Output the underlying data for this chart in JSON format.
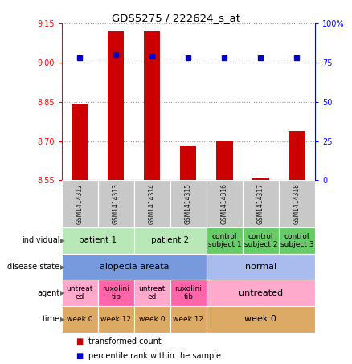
{
  "title": "GDS5275 / 222624_s_at",
  "samples": [
    "GSM1414312",
    "GSM1414313",
    "GSM1414314",
    "GSM1414315",
    "GSM1414316",
    "GSM1414317",
    "GSM1414318"
  ],
  "transformed_count": [
    8.84,
    9.12,
    9.12,
    8.68,
    8.7,
    8.56,
    8.74
  ],
  "percentile_rank": [
    78,
    80,
    79,
    78,
    78,
    78,
    78
  ],
  "ylim_left": [
    8.55,
    9.15
  ],
  "ylim_right": [
    0,
    100
  ],
  "yticks_left": [
    8.55,
    8.7,
    8.85,
    9.0,
    9.15
  ],
  "yticks_right": [
    0,
    25,
    50,
    75,
    100
  ],
  "ytick_labels_right": [
    "0",
    "25",
    "50",
    "75",
    "100%"
  ],
  "bar_color": "#cc0000",
  "dot_color": "#0000cc",
  "annotation_rows": [
    {
      "label": "individual",
      "cells": [
        {
          "text": "patient 1",
          "span": 2,
          "color": "#b8e8b8",
          "fontsize": 7.5
        },
        {
          "text": "patient 2",
          "span": 2,
          "color": "#b8e8b8",
          "fontsize": 7.5
        },
        {
          "text": "control\nsubject 1",
          "span": 1,
          "color": "#66cc66",
          "fontsize": 6.5
        },
        {
          "text": "control\nsubject 2",
          "span": 1,
          "color": "#66cc66",
          "fontsize": 6.5
        },
        {
          "text": "control\nsubject 3",
          "span": 1,
          "color": "#66cc66",
          "fontsize": 6.5
        }
      ]
    },
    {
      "label": "disease state",
      "cells": [
        {
          "text": "alopecia areata",
          "span": 4,
          "color": "#7799dd",
          "fontsize": 8
        },
        {
          "text": "normal",
          "span": 3,
          "color": "#aabbee",
          "fontsize": 8
        }
      ]
    },
    {
      "label": "agent",
      "cells": [
        {
          "text": "untreat\ned",
          "span": 1,
          "color": "#ffaacc",
          "fontsize": 6.5
        },
        {
          "text": "ruxolini\ntib",
          "span": 1,
          "color": "#ff66aa",
          "fontsize": 6.5
        },
        {
          "text": "untreat\ned",
          "span": 1,
          "color": "#ffaacc",
          "fontsize": 6.5
        },
        {
          "text": "ruxolini\ntib",
          "span": 1,
          "color": "#ff66aa",
          "fontsize": 6.5
        },
        {
          "text": "untreated",
          "span": 3,
          "color": "#ffaacc",
          "fontsize": 8
        }
      ]
    },
    {
      "label": "time",
      "cells": [
        {
          "text": "week 0",
          "span": 1,
          "color": "#ddaa66",
          "fontsize": 6.5
        },
        {
          "text": "week 12",
          "span": 1,
          "color": "#ddaa66",
          "fontsize": 6.5
        },
        {
          "text": "week 0",
          "span": 1,
          "color": "#ddaa66",
          "fontsize": 6.5
        },
        {
          "text": "week 12",
          "span": 1,
          "color": "#ddaa66",
          "fontsize": 6.5
        },
        {
          "text": "week 0",
          "span": 3,
          "color": "#ddaa66",
          "fontsize": 8
        }
      ]
    }
  ],
  "legend_items": [
    {
      "color": "#cc0000",
      "label": "transformed count"
    },
    {
      "color": "#0000cc",
      "label": "percentile rank within the sample"
    }
  ]
}
